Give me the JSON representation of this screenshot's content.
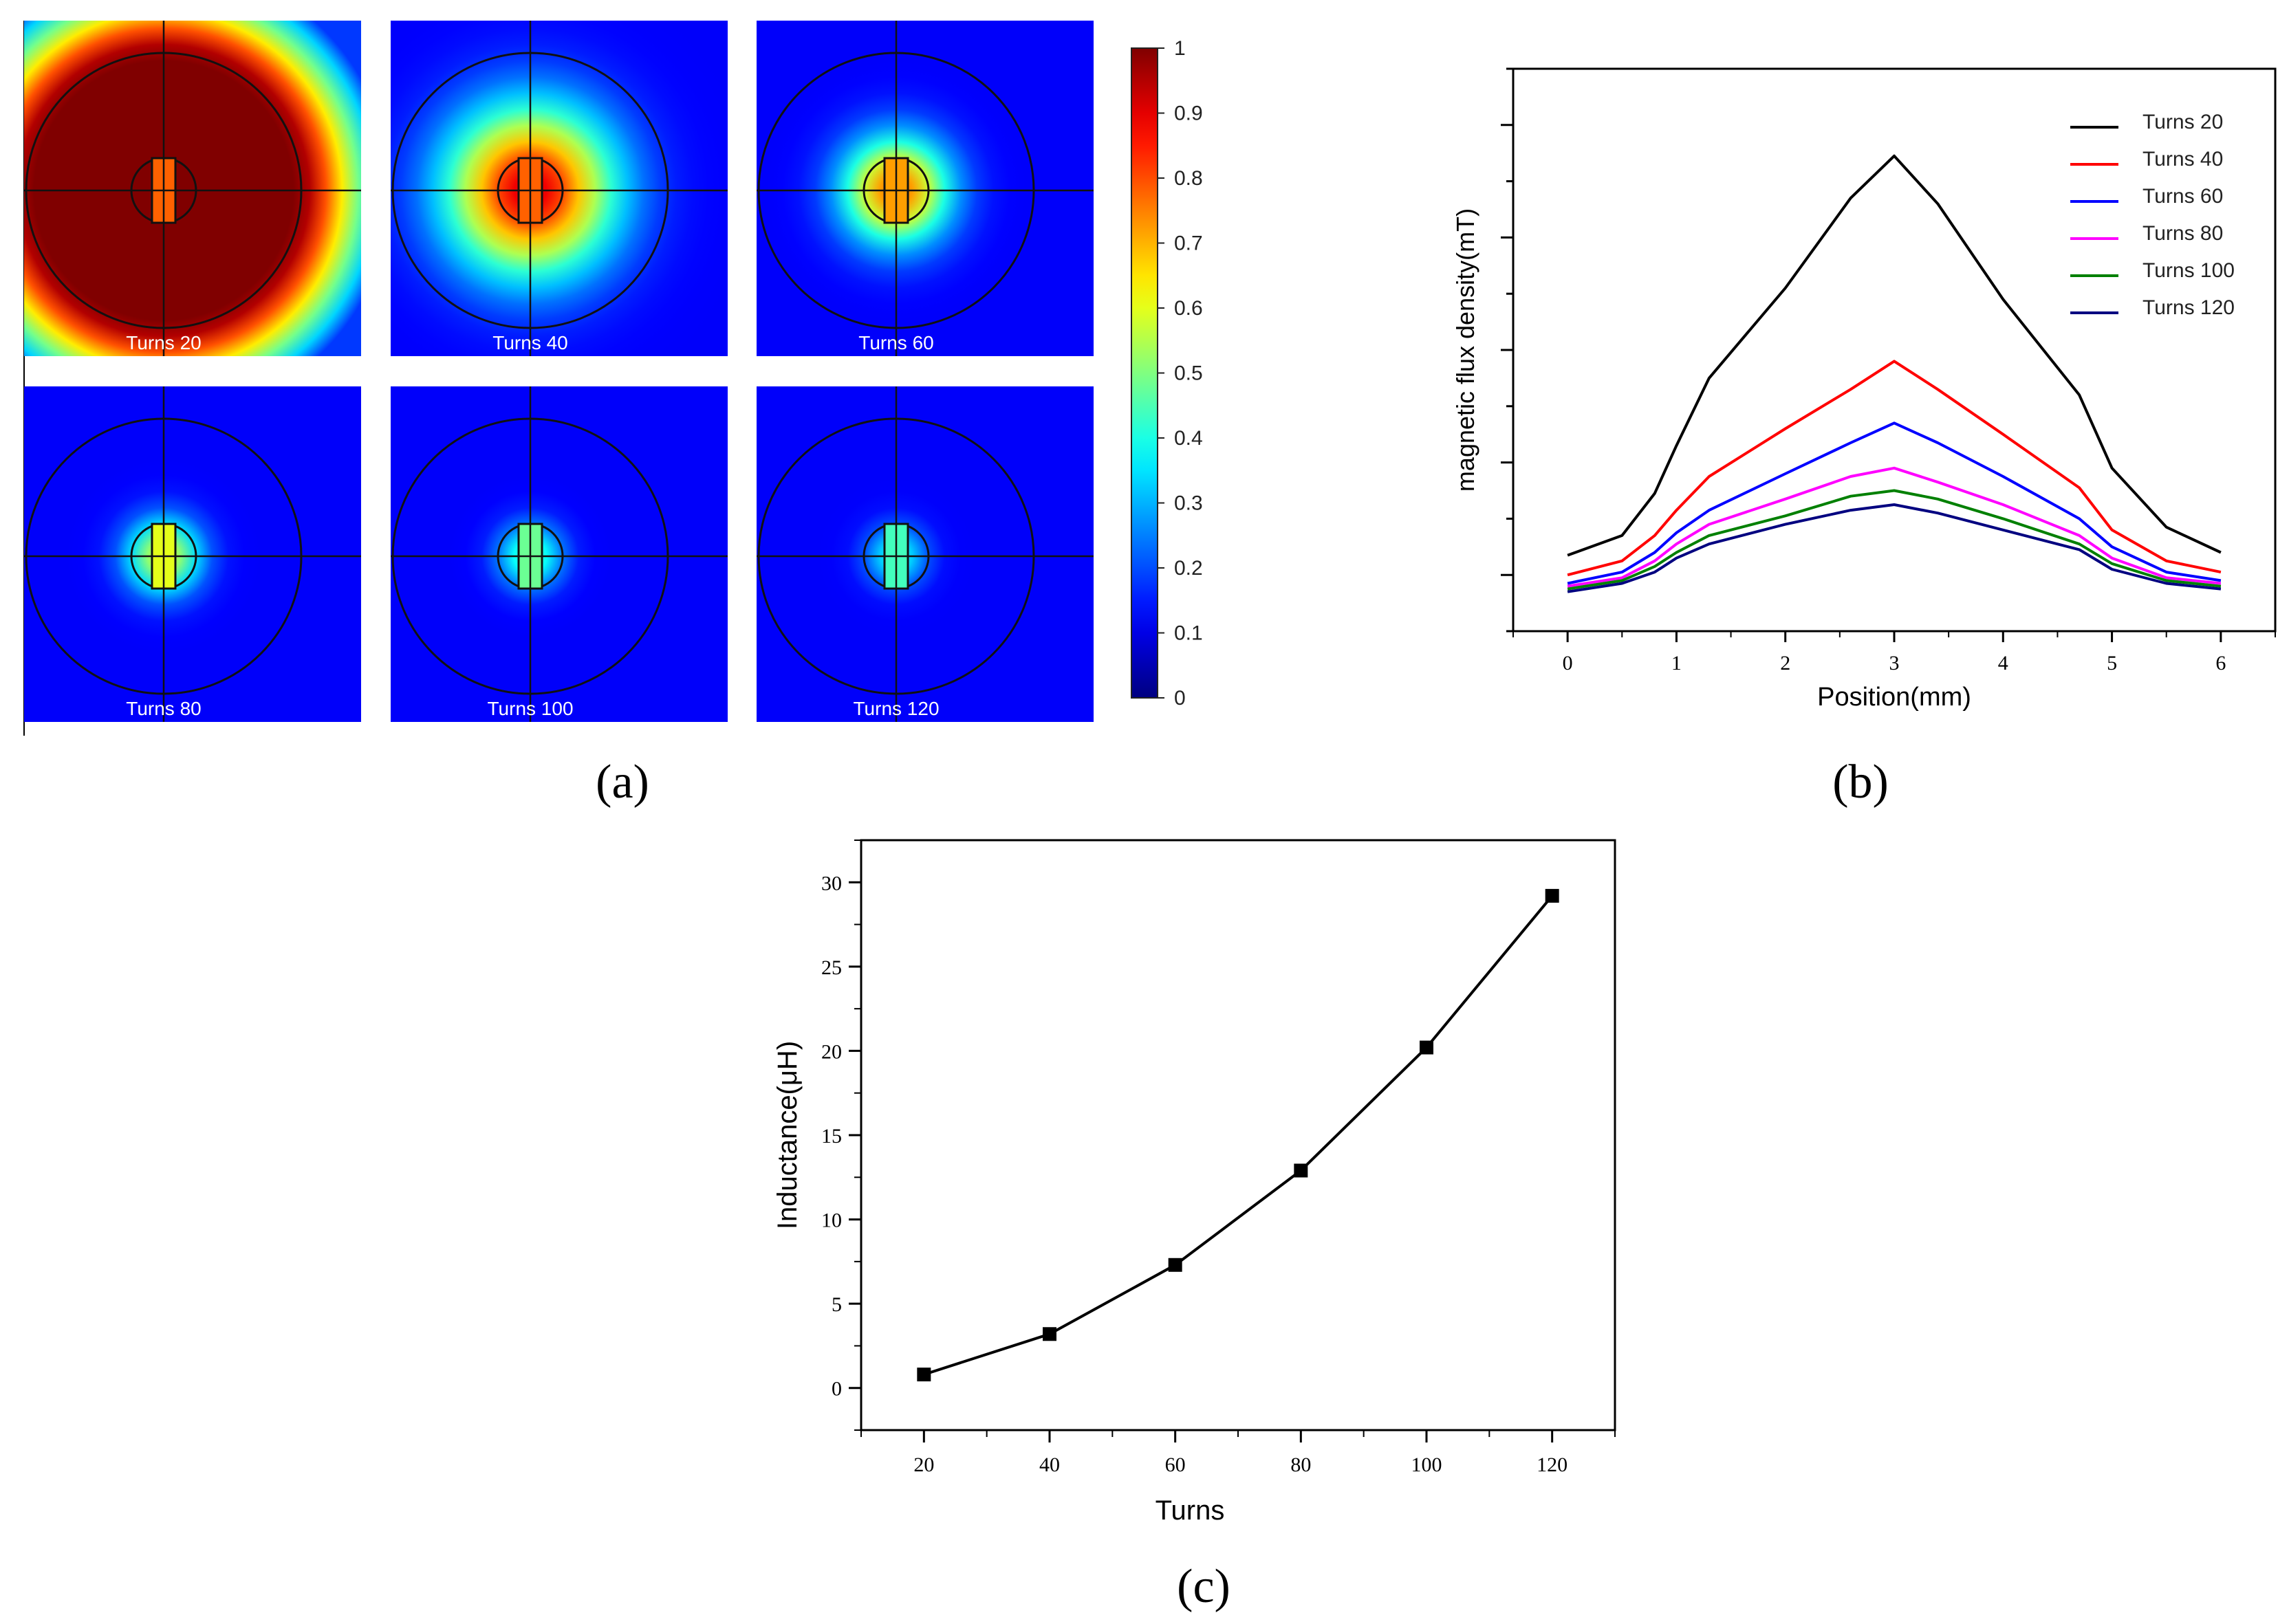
{
  "panel_a": {
    "caption": "(a)",
    "tiles": [
      {
        "label": "Turns 20",
        "intensity": 1.0,
        "core": 0.78,
        "spread": 1.0
      },
      {
        "label": "Turns 40",
        "intensity": 0.92,
        "core": 0.78,
        "spread": 0.62
      },
      {
        "label": "Turns 60",
        "intensity": 0.78,
        "core": 0.72,
        "spread": 0.4
      },
      {
        "label": "Turns 80",
        "intensity": 0.6,
        "core": 0.6,
        "spread": 0.28
      },
      {
        "label": "Turns 100",
        "intensity": 0.46,
        "core": 0.48,
        "spread": 0.24
      },
      {
        "label": "Turns 120",
        "intensity": 0.4,
        "core": 0.44,
        "spread": 0.22
      }
    ],
    "colorbar": {
      "min": 0,
      "max": 1,
      "ticks": [
        "0",
        "0.1",
        "0.2",
        "0.3",
        "0.4",
        "0.5",
        "0.6",
        "0.7",
        "0.8",
        "0.9",
        "1"
      ]
    }
  },
  "chart_data": [
    {
      "id": "b",
      "type": "line",
      "caption": "(b)",
      "title": "",
      "xlabel": "Position(mm)",
      "ylabel": "magnetic flux density(mT)",
      "xlim": [
        -0.5,
        6.5
      ],
      "ylim": [
        0,
        1
      ],
      "xticks": [
        "0",
        "1",
        "2",
        "3",
        "4",
        "5",
        "6"
      ],
      "yticks_labeled": false,
      "legend": "top-right",
      "x": [
        0,
        0.5,
        0.8,
        1.0,
        1.3,
        2.0,
        2.6,
        3.0,
        3.4,
        4.0,
        4.7,
        5.0,
        5.5,
        6.0
      ],
      "series": [
        {
          "name": "Turns 20",
          "color": "#000000",
          "values": [
            0.135,
            0.17,
            0.245,
            0.33,
            0.45,
            0.61,
            0.77,
            0.845,
            0.76,
            0.59,
            0.42,
            0.29,
            0.185,
            0.14
          ]
        },
        {
          "name": "Turns 40",
          "color": "#ff0000",
          "values": [
            0.1,
            0.125,
            0.17,
            0.215,
            0.275,
            0.36,
            0.43,
            0.48,
            0.43,
            0.35,
            0.255,
            0.18,
            0.125,
            0.105
          ]
        },
        {
          "name": "Turns 60",
          "color": "#0000ff",
          "values": [
            0.085,
            0.105,
            0.14,
            0.175,
            0.215,
            0.28,
            0.335,
            0.37,
            0.335,
            0.275,
            0.2,
            0.15,
            0.105,
            0.09
          ]
        },
        {
          "name": "Turns 80",
          "color": "#ff00ff",
          "values": [
            0.08,
            0.095,
            0.125,
            0.155,
            0.19,
            0.235,
            0.275,
            0.29,
            0.265,
            0.225,
            0.17,
            0.13,
            0.095,
            0.085
          ]
        },
        {
          "name": "Turns 100",
          "color": "#008000",
          "values": [
            0.075,
            0.09,
            0.115,
            0.14,
            0.17,
            0.205,
            0.24,
            0.25,
            0.235,
            0.2,
            0.155,
            0.12,
            0.09,
            0.08
          ]
        },
        {
          "name": "Turns 120",
          "color": "#000080",
          "values": [
            0.07,
            0.085,
            0.105,
            0.13,
            0.155,
            0.19,
            0.215,
            0.225,
            0.21,
            0.18,
            0.145,
            0.11,
            0.085,
            0.075
          ]
        }
      ]
    },
    {
      "id": "c",
      "type": "line",
      "caption": "(c)",
      "title": "",
      "xlabel": "Turns",
      "ylabel": "Inductance(μH)",
      "xlim": [
        10,
        130
      ],
      "ylim": [
        -2.5,
        32.5
      ],
      "xticks": [
        "20",
        "40",
        "60",
        "80",
        "100",
        "120"
      ],
      "yticks": [
        "0",
        "5",
        "10",
        "15",
        "20",
        "25",
        "30"
      ],
      "series": [
        {
          "name": "Inductance",
          "color": "#000000",
          "x": [
            20,
            40,
            60,
            80,
            100,
            120
          ],
          "values": [
            0.8,
            3.2,
            7.3,
            12.9,
            20.2,
            29.2
          ]
        }
      ]
    }
  ]
}
